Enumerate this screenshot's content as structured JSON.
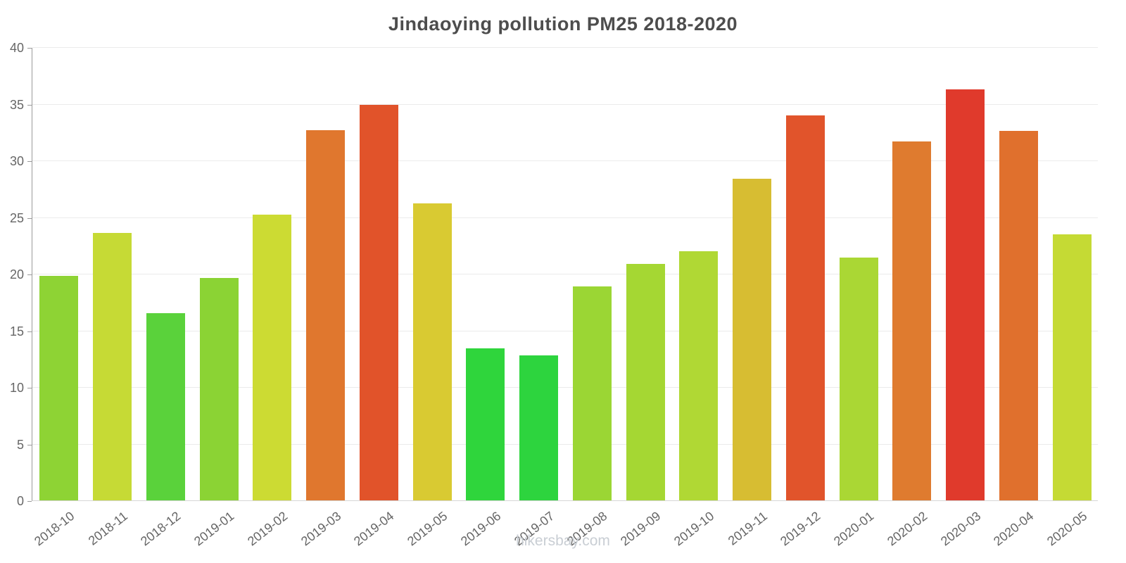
{
  "title": "Jindaoying pollution PM25 2018-2020",
  "footer": "hikersbay.com",
  "chart_data": {
    "type": "bar",
    "title": "Jindaoying pollution PM25 2018-2020",
    "categories": [
      "2018-10",
      "2018-11",
      "2018-12",
      "2019-01",
      "2019-02",
      "2019-03",
      "2019-04",
      "2019-05",
      "2019-06",
      "2019-07",
      "2019-08",
      "2019-09",
      "2019-10",
      "2019-11",
      "2019-12",
      "2020-01",
      "2020-02",
      "2020-03",
      "2020-04",
      "2020-05"
    ],
    "values": [
      19.8,
      23.6,
      16.5,
      19.6,
      25.2,
      32.7,
      34.9,
      26.2,
      13.4,
      12.8,
      18.9,
      20.9,
      22.0,
      28.4,
      34.0,
      21.4,
      31.7,
      36.3,
      32.6,
      23.5
    ],
    "bar_colors": [
      "#8ed334",
      "#c6da35",
      "#5ad23b",
      "#8bd334",
      "#ccdb33",
      "#e0772e",
      "#e1532a",
      "#d9ca32",
      "#2fd53c",
      "#2dd43e",
      "#9bd634",
      "#a5d733",
      "#b0d834",
      "#d7bd32",
      "#e1542b",
      "#aad734",
      "#df7b2f",
      "#e03a2c",
      "#e0702d",
      "#c5da34"
    ],
    "xlabel": "",
    "ylabel": "",
    "ylim": [
      0,
      40
    ],
    "yticks": [
      0,
      5,
      10,
      15,
      20,
      25,
      30,
      35,
      40
    ],
    "grid": true,
    "legend": false,
    "axis_color": "#9a9a9a",
    "grid_color": "#ebebeb",
    "label_color": "#666666"
  }
}
